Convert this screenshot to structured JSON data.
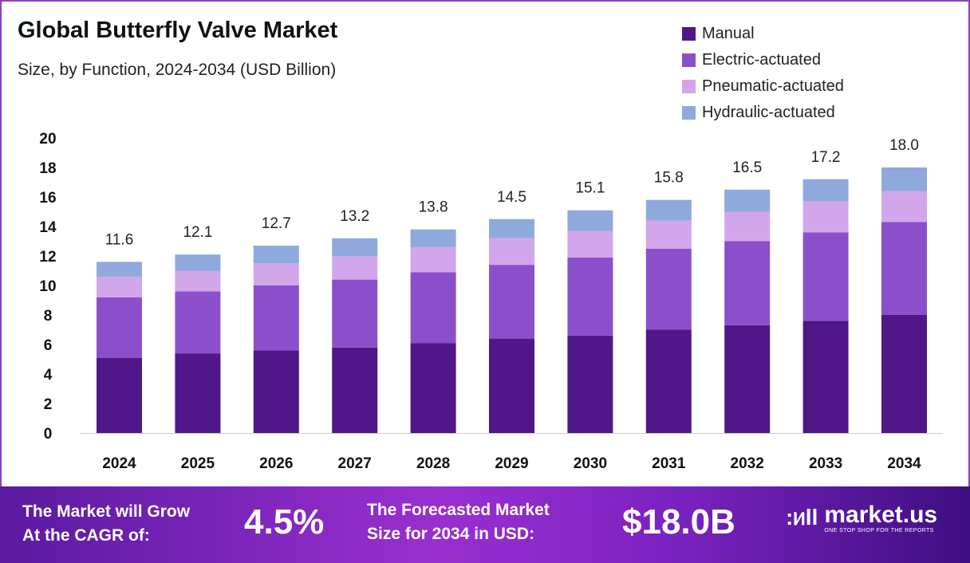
{
  "chart_data": {
    "type": "bar",
    "stacked": true,
    "title": "Global Butterfly Valve Market",
    "subtitle": "Size, by Function, 2024-2034 (USD Billion)",
    "categories": [
      "2024",
      "2025",
      "2026",
      "2027",
      "2028",
      "2029",
      "2030",
      "2031",
      "2032",
      "2033",
      "2034"
    ],
    "series": [
      {
        "name": "Manual",
        "color": "#4f1787",
        "values": [
          5.1,
          5.4,
          5.6,
          5.8,
          6.1,
          6.4,
          6.6,
          7.0,
          7.3,
          7.6,
          8.0
        ]
      },
      {
        "name": "Electric-actuated",
        "color": "#8b4fcc",
        "values": [
          4.1,
          4.2,
          4.4,
          4.6,
          4.8,
          5.0,
          5.3,
          5.5,
          5.7,
          6.0,
          6.3
        ]
      },
      {
        "name": "Pneumatic-actuated",
        "color": "#d2a6ea",
        "values": [
          1.4,
          1.4,
          1.5,
          1.6,
          1.7,
          1.8,
          1.8,
          1.9,
          2.0,
          2.1,
          2.1
        ]
      },
      {
        "name": "Hydraulic-actuated",
        "color": "#8fa9dc",
        "values": [
          1.0,
          1.1,
          1.2,
          1.2,
          1.2,
          1.3,
          1.4,
          1.4,
          1.5,
          1.5,
          1.6
        ]
      }
    ],
    "totals": [
      "11.6",
      "12.1",
      "12.7",
      "13.2",
      "13.8",
      "14.5",
      "15.1",
      "15.8",
      "16.5",
      "17.2",
      "18.0"
    ],
    "yticks": [
      0,
      2,
      4,
      6,
      8,
      10,
      12,
      14,
      16,
      18,
      20
    ],
    "ylim": [
      0,
      20
    ],
    "grid": false,
    "legend": "top-right"
  },
  "footer": {
    "cagr_label_1": "The Market will Grow",
    "cagr_label_2": "At the CAGR of:",
    "cagr_value": "4.5%",
    "forecast_label_1": "The Forecasted Market",
    "forecast_label_2": "Size for 2034 in USD:",
    "forecast_value": "$18.0B",
    "logo_name": "market.us",
    "logo_tagline": "ONE STOP SHOP FOR THE REPORTS"
  }
}
